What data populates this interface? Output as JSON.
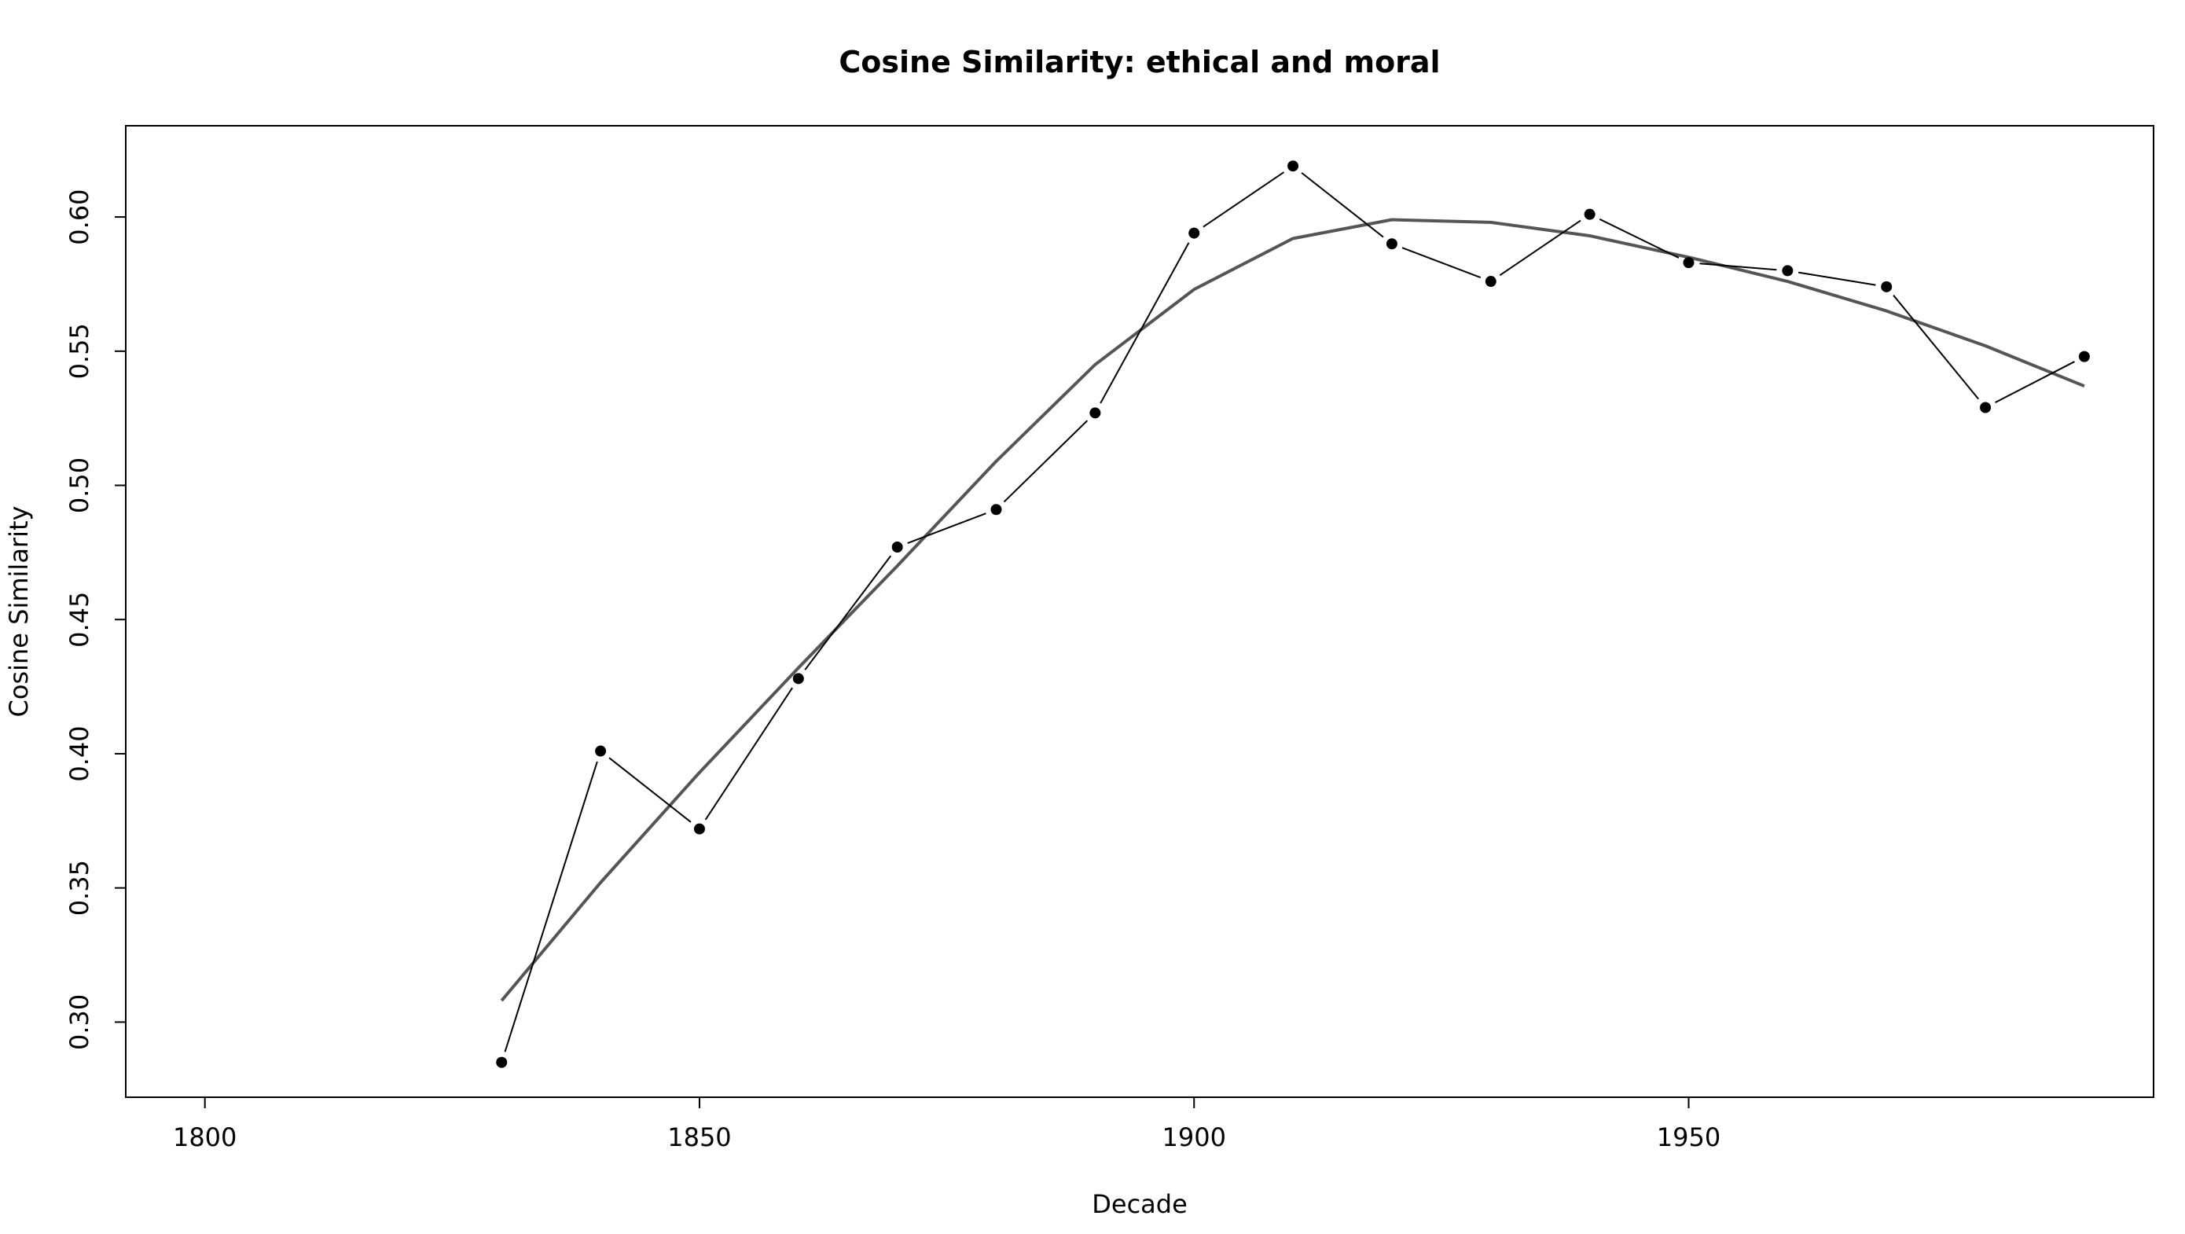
{
  "chart_data": {
    "type": "line",
    "title": "Cosine Similarity: ethical and moral",
    "xlabel": "Decade",
    "ylabel": "Cosine Similarity",
    "xlim": [
      1792,
      1997
    ],
    "ylim": [
      0.272,
      0.634
    ],
    "x_ticks": [
      1800,
      1850,
      1900,
      1950
    ],
    "x_tick_labels": [
      "1800",
      "1850",
      "1900",
      "1950"
    ],
    "y_ticks": [
      0.3,
      0.35,
      0.4,
      0.45,
      0.5,
      0.55,
      0.6
    ],
    "y_tick_labels": [
      "0.30",
      "0.35",
      "0.40",
      "0.45",
      "0.50",
      "0.55",
      "0.60"
    ],
    "grid": false,
    "legend": "none",
    "series": [
      {
        "style": "points-with-lines",
        "color": "#000000",
        "x": [
          1830,
          1840,
          1850,
          1860,
          1870,
          1880,
          1890,
          1900,
          1910,
          1920,
          1930,
          1940,
          1950,
          1960,
          1970,
          1980,
          1990
        ],
        "values": [
          0.285,
          0.401,
          0.372,
          0.428,
          0.477,
          0.491,
          0.527,
          0.594,
          0.619,
          0.59,
          0.576,
          0.601,
          0.583,
          0.58,
          0.574,
          0.529,
          0.548
        ]
      },
      {
        "style": "smoothed-line",
        "color": "#555555",
        "x": [
          1830,
          1840,
          1850,
          1860,
          1870,
          1880,
          1890,
          1900,
          1910,
          1920,
          1930,
          1940,
          1950,
          1960,
          1970,
          1980,
          1990
        ],
        "values": [
          0.308,
          0.352,
          0.393,
          0.432,
          0.47,
          0.509,
          0.545,
          0.573,
          0.592,
          0.599,
          0.598,
          0.593,
          0.585,
          0.576,
          0.565,
          0.552,
          0.537
        ]
      }
    ]
  }
}
